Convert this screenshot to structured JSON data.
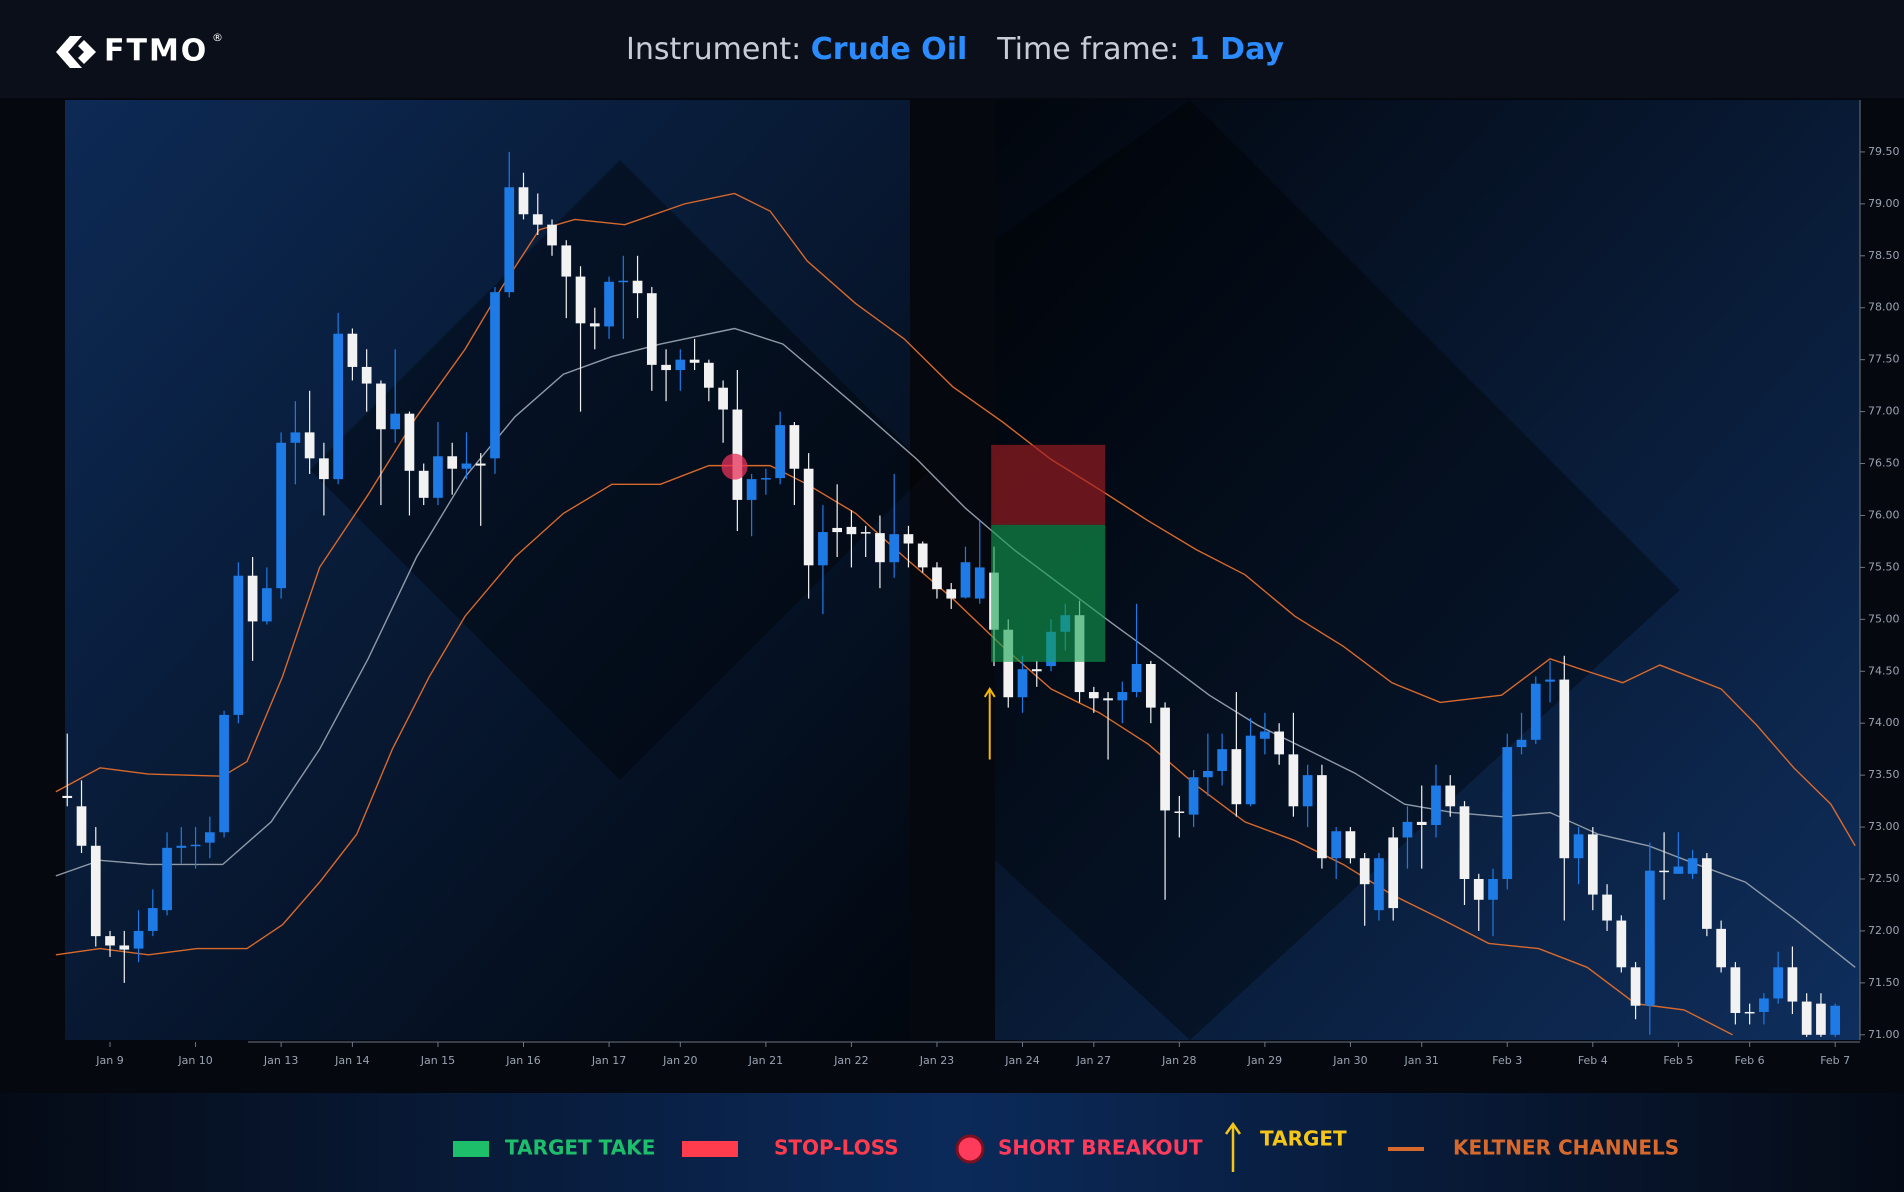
{
  "header": {
    "logo": "FTMO",
    "registered": "®",
    "instrument_label": "Instrument:",
    "instrument": "Crude Oil",
    "timeframe_label": "Time frame:",
    "timeframe": "1 Day"
  },
  "chart_data": {
    "type": "candlestick",
    "open": [
      73.3,
      73.2,
      72.82,
      71.95,
      71.86,
      71.83,
      72.0,
      72.2,
      72.8,
      72.82,
      72.85,
      72.95,
      74.08,
      75.42,
      74.98,
      75.3,
      76.7,
      76.8,
      76.55,
      76.35,
      77.75,
      77.43,
      77.27,
      76.83,
      76.98,
      76.43,
      76.17,
      76.57,
      76.45,
      76.5,
      76.55,
      78.15,
      79.16,
      78.9,
      78.8,
      78.6,
      78.3,
      77.85,
      77.82,
      78.25,
      78.26,
      78.14,
      77.45,
      77.4,
      77.5,
      77.47,
      77.23,
      77.02,
      76.15,
      76.35,
      76.36,
      76.87,
      76.45,
      75.52,
      75.88,
      75.89,
      75.84,
      75.83,
      75.55,
      75.82,
      75.73,
      75.5,
      75.29,
      75.21,
      75.2,
      75.45,
      74.9,
      74.25,
      74.52,
      74.55,
      74.88,
      75.04,
      74.3,
      74.24,
      74.22,
      74.3,
      74.57,
      74.15,
      73.15,
      73.12,
      73.48,
      73.54,
      73.75,
      73.22,
      73.85,
      73.92,
      73.7,
      73.2,
      73.5,
      72.7,
      72.96,
      72.7,
      72.2,
      72.9,
      72.9,
      73.05,
      73.02,
      73.4,
      73.2,
      72.5,
      72.3,
      72.5,
      73.77,
      73.84,
      74.4,
      74.42,
      72.7,
      72.93,
      72.35,
      72.1,
      71.65,
      71.28,
      72.58,
      72.55,
      72.55,
      72.7,
      72.02,
      71.65,
      71.22,
      71.22,
      71.35,
      71.65,
      71.32,
      71.3,
      71.0
    ],
    "high": [
      73.9,
      73.45,
      73.0,
      72.0,
      72.0,
      72.2,
      72.4,
      72.95,
      73.0,
      73.0,
      73.1,
      74.12,
      75.55,
      75.6,
      75.5,
      76.8,
      77.1,
      77.2,
      76.7,
      77.95,
      77.8,
      77.6,
      77.3,
      77.6,
      77.0,
      76.5,
      76.9,
      76.7,
      76.8,
      76.6,
      78.2,
      79.5,
      79.3,
      79.1,
      78.85,
      78.65,
      78.4,
      78.0,
      78.3,
      78.5,
      78.5,
      78.2,
      77.6,
      77.6,
      77.7,
      77.5,
      77.3,
      77.4,
      76.4,
      76.45,
      77.0,
      76.9,
      76.6,
      76.1,
      76.3,
      76.05,
      75.9,
      76.0,
      76.4,
      75.9,
      75.75,
      75.55,
      75.35,
      75.7,
      75.95,
      75.7,
      75.0,
      74.65,
      74.6,
      75.0,
      75.15,
      75.18,
      74.35,
      74.3,
      74.4,
      75.15,
      74.6,
      74.2,
      73.3,
      73.55,
      73.9,
      73.9,
      74.3,
      74.05,
      74.1,
      74.0,
      74.1,
      73.6,
      73.6,
      73.0,
      73.0,
      72.75,
      72.75,
      73.0,
      73.2,
      73.4,
      73.6,
      73.5,
      73.25,
      72.55,
      72.6,
      73.9,
      74.1,
      74.45,
      74.6,
      74.65,
      73.0,
      73.0,
      72.45,
      72.15,
      71.7,
      72.85,
      72.95,
      72.95,
      72.78,
      72.75,
      72.1,
      71.7,
      71.3,
      71.4,
      71.8,
      71.85,
      71.4,
      71.4,
      71.3
    ],
    "low": [
      73.2,
      72.75,
      71.85,
      71.75,
      71.5,
      71.7,
      71.95,
      72.15,
      72.65,
      72.6,
      72.7,
      72.9,
      74.0,
      74.6,
      74.95,
      75.2,
      76.3,
      76.4,
      76.0,
      76.3,
      77.3,
      77.0,
      76.1,
      76.7,
      76.0,
      76.1,
      76.1,
      76.2,
      76.35,
      75.9,
      76.4,
      78.1,
      78.85,
      78.7,
      78.5,
      77.9,
      77.0,
      77.6,
      77.7,
      77.7,
      77.9,
      77.2,
      77.1,
      77.2,
      77.4,
      77.1,
      76.7,
      75.85,
      75.8,
      76.2,
      76.3,
      76.1,
      75.2,
      75.05,
      75.6,
      75.5,
      75.6,
      75.3,
      75.4,
      75.5,
      75.45,
      75.2,
      75.1,
      75.2,
      75.15,
      74.55,
      74.15,
      74.1,
      74.35,
      74.5,
      74.7,
      74.2,
      74.1,
      73.65,
      74.0,
      74.25,
      74.0,
      72.3,
      72.9,
      73.0,
      73.3,
      73.4,
      73.1,
      73.2,
      73.7,
      73.6,
      73.1,
      73.0,
      72.6,
      72.5,
      72.65,
      72.05,
      72.1,
      72.1,
      72.6,
      72.6,
      72.9,
      73.1,
      72.25,
      72.0,
      71.95,
      72.4,
      73.7,
      73.8,
      74.2,
      72.1,
      72.45,
      72.2,
      72.0,
      71.6,
      71.15,
      71.0,
      72.3,
      72.55,
      72.5,
      71.95,
      71.6,
      71.1,
      71.1,
      71.1,
      71.3,
      71.2,
      70.98,
      70.98,
      70.98
    ],
    "close": [
      73.28,
      72.82,
      71.95,
      71.86,
      71.82,
      72.0,
      72.22,
      72.8,
      72.82,
      72.83,
      72.95,
      74.08,
      75.42,
      74.98,
      75.3,
      76.7,
      76.8,
      76.55,
      76.35,
      77.75,
      77.43,
      77.27,
      76.83,
      76.98,
      76.43,
      76.17,
      76.57,
      76.45,
      76.5,
      76.48,
      78.15,
      79.16,
      78.9,
      78.8,
      78.6,
      78.3,
      77.85,
      77.82,
      78.25,
      78.26,
      78.14,
      77.45,
      77.4,
      77.5,
      77.47,
      77.23,
      77.02,
      76.15,
      76.35,
      76.36,
      76.87,
      76.45,
      75.52,
      75.84,
      75.84,
      75.82,
      75.83,
      75.55,
      75.82,
      75.73,
      75.5,
      75.29,
      75.2,
      75.55,
      75.5,
      74.9,
      74.25,
      74.52,
      74.5,
      74.88,
      75.04,
      74.3,
      74.24,
      74.22,
      74.3,
      74.57,
      74.15,
      73.16,
      73.14,
      73.48,
      73.54,
      73.75,
      73.22,
      73.88,
      73.92,
      73.7,
      73.2,
      73.5,
      72.7,
      72.96,
      72.7,
      72.45,
      72.7,
      72.22,
      73.05,
      73.02,
      73.4,
      73.2,
      72.5,
      72.3,
      72.5,
      73.77,
      73.84,
      74.38,
      74.42,
      72.7,
      72.93,
      72.35,
      72.1,
      71.65,
      71.28,
      72.58,
      72.57,
      72.62,
      72.7,
      72.02,
      71.65,
      71.21,
      71.21,
      71.35,
      71.65,
      71.32,
      71.0,
      71.0,
      71.28
    ],
    "up_color": "#1e7be6",
    "down_color": "#f2f2f2",
    "xlim": [
      -1,
      125.6
    ],
    "xticks": [
      {
        "value": 3,
        "label": "Jan 9"
      },
      {
        "value": 9,
        "label": "Jan 10"
      },
      {
        "value": 15,
        "label": "Jan 13"
      },
      {
        "value": 20,
        "label": "Jan 14"
      },
      {
        "value": 26,
        "label": "Jan 15"
      },
      {
        "value": 32,
        "label": "Jan 16"
      },
      {
        "value": 38,
        "label": "Jan 17"
      },
      {
        "value": 43,
        "label": "Jan 20"
      },
      {
        "value": 49,
        "label": "Jan 21"
      },
      {
        "value": 55,
        "label": "Jan 22"
      },
      {
        "value": 61,
        "label": "Jan 23"
      },
      {
        "value": 67,
        "label": "Jan 24"
      },
      {
        "value": 72,
        "label": "Jan 27"
      },
      {
        "value": 78,
        "label": "Jan 28"
      },
      {
        "value": 84,
        "label": "Jan 29"
      },
      {
        "value": 90,
        "label": "Jan 30"
      },
      {
        "value": 95,
        "label": "Jan 31"
      },
      {
        "value": 101,
        "label": "Feb 3"
      },
      {
        "value": 107,
        "label": "Feb 4"
      },
      {
        "value": 113,
        "label": "Feb 5"
      },
      {
        "value": 118,
        "label": "Feb 6"
      },
      {
        "value": 124,
        "label": "Feb 7"
      }
    ],
    "ylim": [
      70.95,
      80
    ],
    "yticks": [
      {
        "value": 71,
        "label": "71.00"
      },
      {
        "value": 71.5,
        "label": "71.50"
      },
      {
        "value": 72,
        "label": "72.00"
      },
      {
        "value": 72.5,
        "label": "72.50"
      },
      {
        "value": 73,
        "label": "73.00"
      },
      {
        "value": 73.5,
        "label": "73.50"
      },
      {
        "value": 74,
        "label": "74.00"
      },
      {
        "value": 74.5,
        "label": "74.50"
      },
      {
        "value": 75,
        "label": "75.00"
      },
      {
        "value": 75.5,
        "label": "75.50"
      },
      {
        "value": 76,
        "label": "76.00"
      },
      {
        "value": 76.5,
        "label": "76.50"
      },
      {
        "value": 77,
        "label": "77.00"
      },
      {
        "value": 77.5,
        "label": "77.50"
      },
      {
        "value": 78,
        "label": "78.00"
      },
      {
        "value": 78.5,
        "label": "78.50"
      },
      {
        "value": 79,
        "label": "79.00"
      },
      {
        "value": 79.5,
        "label": "79.50"
      }
    ],
    "keltner": {
      "name": "KELTNER CHANNELS",
      "color": "#d8692c",
      "middle_color": "#8f9aa8",
      "upper": {
        "x": [
          -0.8,
          2.3,
          5.7,
          10.9,
          12.6,
          15.1,
          17.7,
          21.1,
          24.5,
          27.9,
          30.5,
          33.1,
          35.6,
          39.1,
          43.3,
          46.8,
          49.3,
          51.9,
          55.3,
          58.7,
          62.1,
          65.6,
          69.0,
          72.4,
          75.8,
          79.2,
          82.6,
          86.1,
          89.5,
          92.9,
          96.3,
          100.6,
          104.0,
          106.6,
          109.1,
          111.7,
          116.0,
          118.5,
          121.1,
          123.7,
          125.4
        ],
        "values": [
          73.34,
          73.57,
          73.51,
          73.49,
          73.63,
          74.45,
          75.5,
          76.2,
          76.95,
          77.6,
          78.2,
          78.75,
          78.85,
          78.8,
          79.0,
          79.1,
          78.93,
          78.45,
          78.04,
          77.7,
          77.24,
          76.9,
          76.54,
          76.25,
          75.95,
          75.67,
          75.43,
          75.03,
          74.74,
          74.39,
          74.2,
          74.27,
          74.62,
          74.5,
          74.39,
          74.56,
          74.33,
          73.98,
          73.57,
          73.22,
          72.82
        ]
      },
      "middle": {
        "x": [
          -0.8,
          2.3,
          5.7,
          10.9,
          14.3,
          17.7,
          21.1,
          24.5,
          27.9,
          31.4,
          34.8,
          38.2,
          41.6,
          46.8,
          50.2,
          52.7,
          56.2,
          59.6,
          63.0,
          66.4,
          69.8,
          73.2,
          76.7,
          80.1,
          83.5,
          86.9,
          90.3,
          93.8,
          97.2,
          100.6,
          104.0,
          107.4,
          110.9,
          114.3,
          117.7,
          121.1,
          125.4
        ],
        "values": [
          72.53,
          72.68,
          72.64,
          72.64,
          73.05,
          73.75,
          74.62,
          75.6,
          76.37,
          76.95,
          77.36,
          77.53,
          77.65,
          77.8,
          77.65,
          77.36,
          76.95,
          76.54,
          76.07,
          75.67,
          75.32,
          74.97,
          74.62,
          74.27,
          73.98,
          73.75,
          73.52,
          73.22,
          73.14,
          73.1,
          73.14,
          72.93,
          72.82,
          72.64,
          72.47,
          72.12,
          71.65
        ]
      },
      "lower": {
        "x": [
          -0.8,
          2.3,
          5.7,
          9.1,
          12.6,
          15.1,
          17.7,
          20.3,
          22.8,
          25.4,
          27.9,
          31.4,
          34.8,
          38.2,
          41.6,
          45.0,
          49.3,
          51.9,
          55.3,
          58.7,
          62.1,
          65.6,
          69.0,
          72.4,
          75.8,
          79.2,
          82.6,
          86.1,
          89.5,
          92.9,
          96.3,
          99.7,
          103.2,
          106.6,
          110.0,
          113.4,
          116.8
        ],
        "values": [
          71.77,
          71.83,
          71.77,
          71.83,
          71.83,
          72.06,
          72.47,
          72.93,
          73.75,
          74.45,
          75.03,
          75.6,
          76.02,
          76.3,
          76.3,
          76.48,
          76.48,
          76.3,
          76.02,
          75.6,
          75.2,
          74.74,
          74.33,
          74.1,
          73.8,
          73.4,
          73.05,
          72.87,
          72.64,
          72.35,
          72.12,
          71.88,
          71.83,
          71.65,
          71.3,
          71.24,
          71.0
        ]
      }
    },
    "setup": {
      "x": [
        64.8,
        72.8
      ],
      "stop": 76.68,
      "entry": 75.91,
      "target": 74.59,
      "stop_color": "#a01c22",
      "target_color": "#12a050"
    },
    "breakout": {
      "x": 46.8,
      "y": 76.47,
      "color": "#e8315a"
    },
    "target_arrow": {
      "x": 64.7,
      "y": [
        73.65,
        74.33
      ],
      "color": "#f5b800"
    }
  },
  "legend": {
    "target_take": {
      "label": "TARGET TAKE",
      "color": "#1dbf6b"
    },
    "stop_loss": {
      "label": "STOP-LOSS",
      "color": "#ff3b4e"
    },
    "short_breakout": {
      "label": "SHORT BREAKOUT",
      "color": "#ff3b5c"
    },
    "target": {
      "label": "TARGET",
      "color": "#f5c518"
    }
  }
}
